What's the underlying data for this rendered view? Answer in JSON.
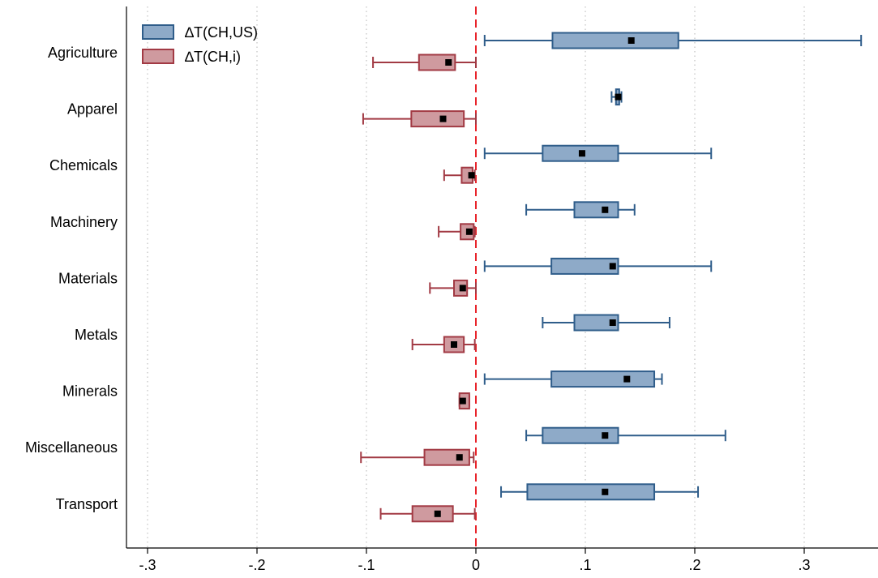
{
  "chart_data": {
    "type": "box",
    "orientation": "horizontal",
    "xlim": [
      -0.32,
      0.36
    ],
    "xticks": [
      {
        "value": -0.3,
        "label": "-.3"
      },
      {
        "value": -0.2,
        "label": "-.2"
      },
      {
        "value": -0.1,
        "label": "-.1"
      },
      {
        "value": 0,
        "label": "0"
      },
      {
        "value": 0.1,
        "label": ".1"
      },
      {
        "value": 0.2,
        "label": ".2"
      },
      {
        "value": 0.3,
        "label": ".3"
      }
    ],
    "grid": "vertical-dotted",
    "reference_line": {
      "x": 0,
      "color": "#e8232a",
      "style": "dashed"
    },
    "legend_position": "top-left",
    "categories": [
      "Agriculture",
      "Apparel",
      "Chemicals",
      "Machinery",
      "Materials",
      "Metals",
      "Minerals",
      "Miscellaneous",
      "Transport"
    ],
    "series": [
      {
        "name": "∆T(CH,US)",
        "fill": "#8eaac8",
        "stroke": "#2f5d8a",
        "boxes": [
          {
            "min": 0.008,
            "q1": 0.07,
            "median": 0.142,
            "q3": 0.185,
            "max": 0.352
          },
          {
            "min": 0.124,
            "q1": 0.128,
            "median": 0.13,
            "q3": 0.131,
            "max": 0.133
          },
          {
            "min": 0.008,
            "q1": 0.061,
            "median": 0.097,
            "q3": 0.13,
            "max": 0.215
          },
          {
            "min": 0.046,
            "q1": 0.09,
            "median": 0.118,
            "q3": 0.13,
            "max": 0.145
          },
          {
            "min": 0.008,
            "q1": 0.069,
            "median": 0.125,
            "q3": 0.13,
            "max": 0.215
          },
          {
            "min": 0.061,
            "q1": 0.09,
            "median": 0.125,
            "q3": 0.13,
            "max": 0.177
          },
          {
            "min": 0.008,
            "q1": 0.069,
            "median": 0.138,
            "q3": 0.163,
            "max": 0.17
          },
          {
            "min": 0.046,
            "q1": 0.061,
            "median": 0.118,
            "q3": 0.13,
            "max": 0.228
          },
          {
            "min": 0.023,
            "q1": 0.047,
            "median": 0.118,
            "q3": 0.163,
            "max": 0.203
          }
        ]
      },
      {
        "name": "∆T(CH,i)",
        "fill": "#cf9a9f",
        "stroke": "#a23a44",
        "boxes": [
          {
            "min": -0.094,
            "q1": -0.052,
            "median": -0.025,
            "q3": -0.019,
            "max": 0.0
          },
          {
            "min": -0.103,
            "q1": -0.059,
            "median": -0.03,
            "q3": -0.011,
            "max": 0.0
          },
          {
            "min": -0.029,
            "q1": -0.013,
            "median": -0.004,
            "q3": -0.003,
            "max": -0.001
          },
          {
            "min": -0.034,
            "q1": -0.014,
            "median": -0.006,
            "q3": -0.002,
            "max": -0.001
          },
          {
            "min": -0.042,
            "q1": -0.02,
            "median": -0.012,
            "q3": -0.008,
            "max": 0.0
          },
          {
            "min": -0.058,
            "q1": -0.029,
            "median": -0.02,
            "q3": -0.011,
            "max": -0.001
          },
          {
            "min": -0.015,
            "q1": -0.015,
            "median": -0.012,
            "q3": -0.006,
            "max": -0.006
          },
          {
            "min": -0.105,
            "q1": -0.047,
            "median": -0.015,
            "q3": -0.006,
            "max": -0.002
          },
          {
            "min": -0.087,
            "q1": -0.058,
            "median": -0.035,
            "q3": -0.021,
            "max": -0.001
          }
        ]
      }
    ]
  }
}
